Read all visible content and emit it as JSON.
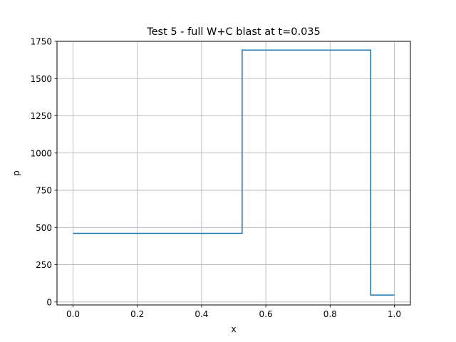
{
  "chart_data": {
    "type": "line",
    "title": "Test 5 - full W+C blast at t=0.035",
    "xlabel": "x",
    "ylabel": "p",
    "xlim": [
      -0.05,
      1.05
    ],
    "ylim": [
      -20,
      1750
    ],
    "xticks": [
      0.0,
      0.2,
      0.4,
      0.6,
      0.8,
      1.0
    ],
    "xtick_labels": [
      "0.0",
      "0.2",
      "0.4",
      "0.6",
      "0.8",
      "1.0"
    ],
    "yticks": [
      0,
      250,
      500,
      750,
      1000,
      1250,
      1500,
      1750
    ],
    "ytick_labels": [
      "0",
      "250",
      "500",
      "750",
      "1000",
      "1250",
      "1500",
      "1750"
    ],
    "grid": true,
    "series": [
      {
        "color": "#1f77b4",
        "x": [
          0.0,
          0.5263,
          0.5263,
          0.9263,
          0.9263,
          1.0
        ],
        "y": [
          460.9,
          460.9,
          1691.6,
          1691.6,
          46.1,
          46.1
        ]
      }
    ]
  }
}
